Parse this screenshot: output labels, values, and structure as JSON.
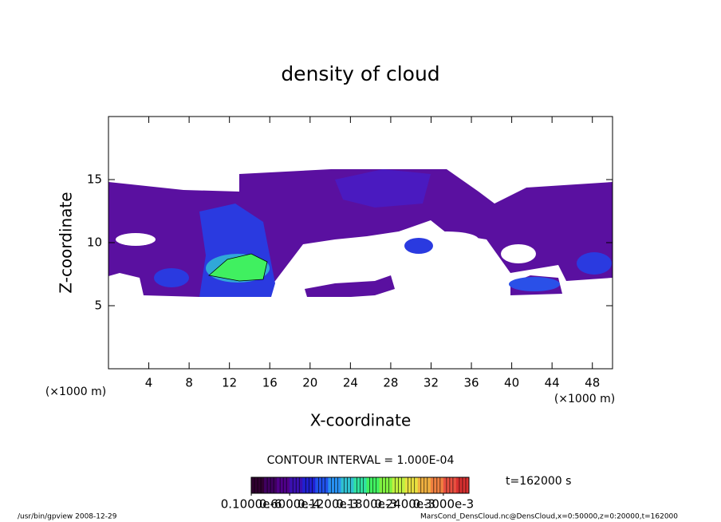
{
  "chart_data": {
    "type": "contour",
    "title": "density of cloud",
    "x_label": "X-coordinate",
    "y_label": "Z-coordinate",
    "x_unit": "(×1000 m)",
    "y_unit": "(×1000 m)",
    "xlim": [
      0,
      50
    ],
    "xticks": [
      4,
      8,
      12,
      16,
      20,
      24,
      28,
      32,
      36,
      40,
      44,
      48
    ],
    "ylim": [
      0,
      20
    ],
    "yticks": [
      5,
      10,
      15
    ],
    "contour_interval": "CONTOUR INTERVAL = 1.000E-04",
    "time_label": "t=162000 s",
    "colorbar_colors": [
      "#300030",
      "#400060",
      "#50008a",
      "#3a10b0",
      "#2020d0",
      "#2050e8",
      "#2890f0",
      "#30c0d0",
      "#30e0a0",
      "#40f060",
      "#80f040",
      "#c0f040",
      "#e8e040",
      "#f0b040",
      "#f08040",
      "#e85040",
      "#d83030"
    ],
    "colorbar_ticks": [
      {
        "value": 1e-07,
        "label": "0.1000e-6"
      },
      {
        "value": 6e-05,
        "label": "0.6000e-4"
      },
      {
        "value": 0.00012,
        "label": "0.1200e-3"
      },
      {
        "value": 0.00018,
        "label": "0.1800e-3"
      },
      {
        "value": 0.00024,
        "label": "0.2400e-3"
      },
      {
        "value": 0.0003,
        "label": "0.3000e-3"
      }
    ],
    "colorbar_lim": [
      0,
      0.00034
    ],
    "footer_left": "/usr/bin/gpview  2008-12-29",
    "footer_right": "MarsCond_DensCloud.nc@DensCloud,x=0:50000,z=0:20000,t=162000"
  }
}
